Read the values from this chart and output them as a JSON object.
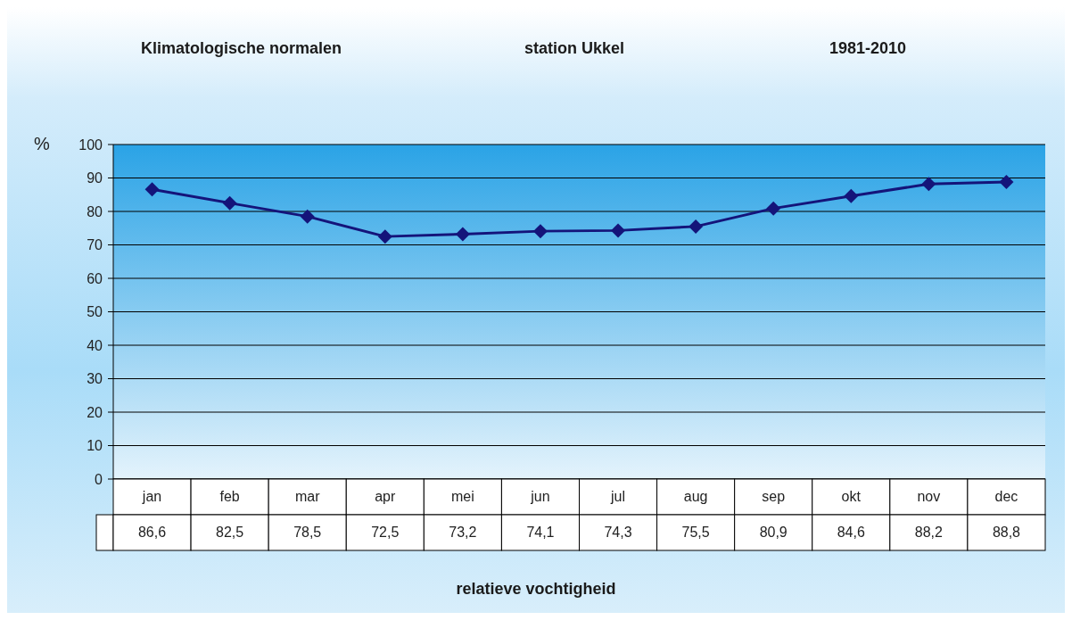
{
  "chart_data": {
    "type": "line",
    "title": "Klimatologische normalen",
    "subtitle": "station Ukkel",
    "annotations": [
      "1981-2010"
    ],
    "xlabel": "relatieve vochtigheid",
    "ylabel": "%",
    "categories": [
      "jan",
      "feb",
      "mar",
      "apr",
      "mei",
      "jun",
      "jul",
      "aug",
      "sep",
      "okt",
      "nov",
      "dec"
    ],
    "series": [
      {
        "color": "#14147a",
        "values": [
          86.6,
          82.5,
          78.5,
          72.5,
          73.2,
          74.1,
          74.3,
          75.5,
          80.9,
          84.6,
          88.2,
          88.8
        ],
        "value_labels": [
          "86,6",
          "82,5",
          "78,5",
          "72,5",
          "73,2",
          "74,1",
          "74,3",
          "75,5",
          "80,9",
          "84,6",
          "88,2",
          "88,8"
        ]
      }
    ],
    "ylim": [
      0,
      100
    ],
    "yticks": [
      0,
      10,
      20,
      30,
      40,
      50,
      60,
      70,
      80,
      90,
      100
    ],
    "grid": "y",
    "marker": "diamond",
    "line_style": "solid"
  }
}
